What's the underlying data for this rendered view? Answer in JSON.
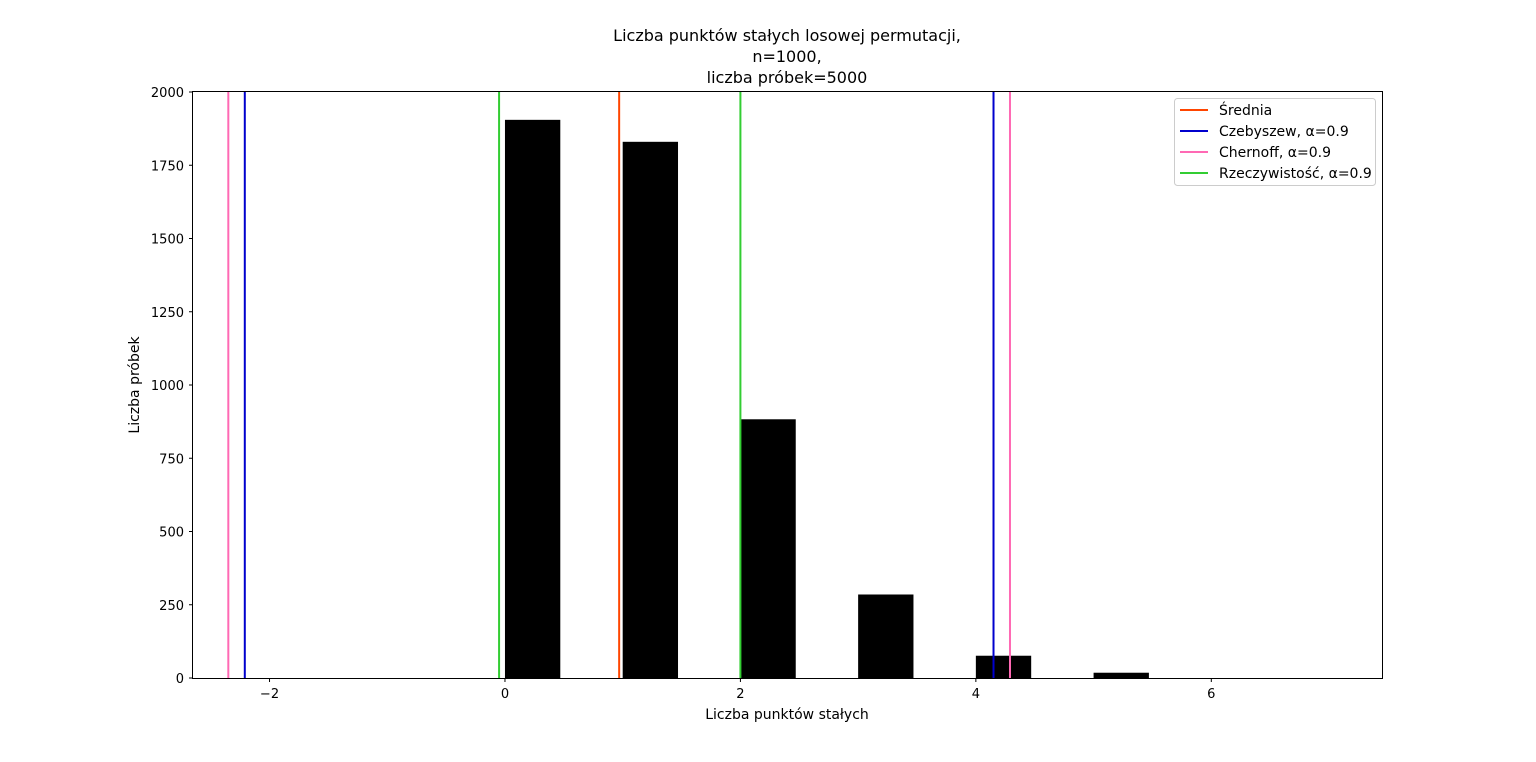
{
  "chart_data": {
    "type": "bar",
    "title_lines": [
      "Liczba punktów stałych losowej permutacji,",
      "n=1000,",
      "liczba próbek=5000"
    ],
    "xlabel": "Liczba punktów stałych",
    "ylabel": "Liczba próbek",
    "xlim": [
      -2.65,
      7.45
    ],
    "ylim": [
      0,
      2000
    ],
    "x_ticks": [
      {
        "value": -2,
        "label": "−2"
      },
      {
        "value": 0,
        "label": "0"
      },
      {
        "value": 2,
        "label": "2"
      },
      {
        "value": 4,
        "label": "4"
      },
      {
        "value": 6,
        "label": "6"
      }
    ],
    "y_ticks": [
      {
        "value": 0,
        "label": "0"
      },
      {
        "value": 250,
        "label": "250"
      },
      {
        "value": 500,
        "label": "500"
      },
      {
        "value": 750,
        "label": "750"
      },
      {
        "value": 1000,
        "label": "1000"
      },
      {
        "value": 1250,
        "label": "1250"
      },
      {
        "value": 1500,
        "label": "1500"
      },
      {
        "value": 1750,
        "label": "1750"
      },
      {
        "value": 2000,
        "label": "2000"
      }
    ],
    "bar_color": "#000000",
    "bars": [
      {
        "x": 0,
        "value": 1905
      },
      {
        "x": 1,
        "value": 1830
      },
      {
        "x": 2,
        "value": 883
      },
      {
        "x": 3,
        "value": 285
      },
      {
        "x": 4,
        "value": 76
      },
      {
        "x": 5,
        "value": 18
      }
    ],
    "vertical_lines": [
      {
        "legend": "Średnia",
        "color": "#ff4500",
        "x": [
          0.97
        ]
      },
      {
        "legend": "Czebyszew, α=0.9",
        "color": "#0000cd",
        "x": [
          -2.21,
          4.15
        ]
      },
      {
        "legend": "Chernoff, α=0.9",
        "color": "#ff69b4",
        "x": [
          -2.35,
          4.29
        ]
      },
      {
        "legend": "Rzeczywistość, α=0.9",
        "color": "#32cd32",
        "x": [
          -0.05,
          2.0
        ]
      }
    ],
    "legend_placement": "top-right",
    "grid": false
  }
}
